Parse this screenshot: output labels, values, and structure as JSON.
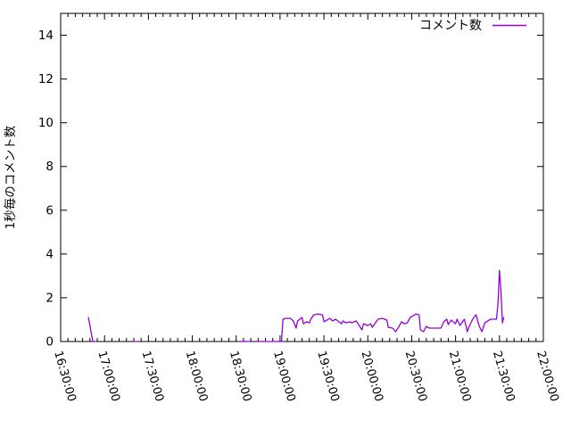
{
  "chart_data": {
    "type": "line",
    "title": "",
    "ylabel": "1秒毎のコメント数",
    "xlabel": "",
    "legend": "コメント数",
    "legend_position": "top-right-inside",
    "grid": false,
    "colors": {
      "series": "#9400d3",
      "axis": "#000000",
      "background": "#ffffff"
    },
    "ylim": [
      0,
      15
    ],
    "yticks": {
      "values": [
        0,
        2,
        4,
        6,
        8,
        10,
        12,
        14
      ],
      "labels": [
        "0",
        "2",
        "4",
        "6",
        "8",
        "10",
        "12",
        "14"
      ]
    },
    "xrange": [
      "16:30:00",
      "22:00:00"
    ],
    "xticks": {
      "labels": [
        "16:30:00",
        "17:00:00",
        "17:30:00",
        "18:00:00",
        "18:30:00",
        "19:00:00",
        "19:30:00",
        "20:00:00",
        "20:30:00",
        "21:00:00",
        "21:30:00",
        "22:00:00"
      ],
      "label_rotation_deg": 74,
      "minor_every_min": 5
    },
    "series": [
      {
        "name": "コメント数",
        "segments": [
          [
            [
              "16:49",
              1.1
            ],
            [
              "16:52",
              0
            ],
            [
              "16:54",
              0
            ]
          ],
          [
            [
              "17:20",
              0
            ],
            [
              "17:23",
              0
            ]
          ],
          [
            [
              "18:32",
              0
            ],
            [
              "18:40",
              0
            ]
          ],
          [
            [
              "18:45",
              0
            ],
            [
              "19:01",
              0
            ],
            [
              "19:02",
              1.02
            ],
            [
              "19:04",
              1.06
            ],
            [
              "19:07",
              1.06
            ],
            [
              "19:09",
              0.94
            ],
            [
              "19:11",
              0.61
            ],
            [
              "19:12",
              0.94
            ],
            [
              "19:15",
              1.1
            ],
            [
              "19:16",
              0.81
            ],
            [
              "19:18",
              0.9
            ],
            [
              "19:20",
              0.85
            ],
            [
              "19:21",
              1.02
            ],
            [
              "19:23",
              1.22
            ],
            [
              "19:26",
              1.26
            ],
            [
              "19:29",
              1.22
            ],
            [
              "19:30",
              0.9
            ],
            [
              "19:32",
              0.98
            ],
            [
              "19:34",
              1.06
            ],
            [
              "19:36",
              0.94
            ],
            [
              "19:38",
              1.02
            ],
            [
              "19:42",
              0.81
            ],
            [
              "19:43",
              0.94
            ],
            [
              "19:45",
              0.85
            ],
            [
              "19:48",
              0.9
            ],
            [
              "19:49",
              0.85
            ],
            [
              "19:52",
              0.94
            ],
            [
              "19:56",
              0.53
            ],
            [
              "19:57",
              0.81
            ],
            [
              "20:00",
              0.73
            ],
            [
              "20:02",
              0.81
            ],
            [
              "20:03",
              0.65
            ],
            [
              "20:07",
              1.02
            ],
            [
              "20:10",
              1.06
            ],
            [
              "20:13",
              0.98
            ],
            [
              "20:14",
              0.65
            ],
            [
              "20:17",
              0.61
            ],
            [
              "20:19",
              0.45
            ],
            [
              "20:21",
              0.65
            ],
            [
              "20:23",
              0.9
            ],
            [
              "20:25",
              0.81
            ],
            [
              "20:27",
              0.85
            ],
            [
              "20:29",
              1.1
            ],
            [
              "20:31",
              1.18
            ],
            [
              "20:33",
              1.26
            ],
            [
              "20:35",
              1.22
            ],
            [
              "20:36",
              0.53
            ],
            [
              "20:38",
              0.45
            ],
            [
              "20:40",
              0.69
            ],
            [
              "20:42",
              0.61
            ],
            [
              "20:44",
              0.61
            ],
            [
              "20:47",
              0.61
            ],
            [
              "20:50",
              0.61
            ],
            [
              "20:52",
              0.9
            ],
            [
              "20:54",
              1.02
            ],
            [
              "20:55",
              0.77
            ],
            [
              "20:57",
              0.98
            ],
            [
              "21:00",
              0.81
            ],
            [
              "21:01",
              1.02
            ],
            [
              "21:03",
              0.73
            ],
            [
              "21:06",
              1.02
            ],
            [
              "21:08",
              0.45
            ],
            [
              "21:09",
              0.65
            ],
            [
              "21:12",
              1.06
            ],
            [
              "21:14",
              1.22
            ],
            [
              "21:16",
              0.73
            ],
            [
              "21:18",
              0.45
            ],
            [
              "21:20",
              0.85
            ],
            [
              "21:22",
              0.94
            ],
            [
              "21:24",
              1.02
            ],
            [
              "21:28",
              1.02
            ],
            [
              "21:29",
              1.75
            ],
            [
              "21:30",
              3.25
            ],
            [
              "21:31",
              2.3
            ],
            [
              "21:32",
              0.85
            ],
            [
              "21:33",
              1.1
            ]
          ]
        ]
      }
    ]
  }
}
